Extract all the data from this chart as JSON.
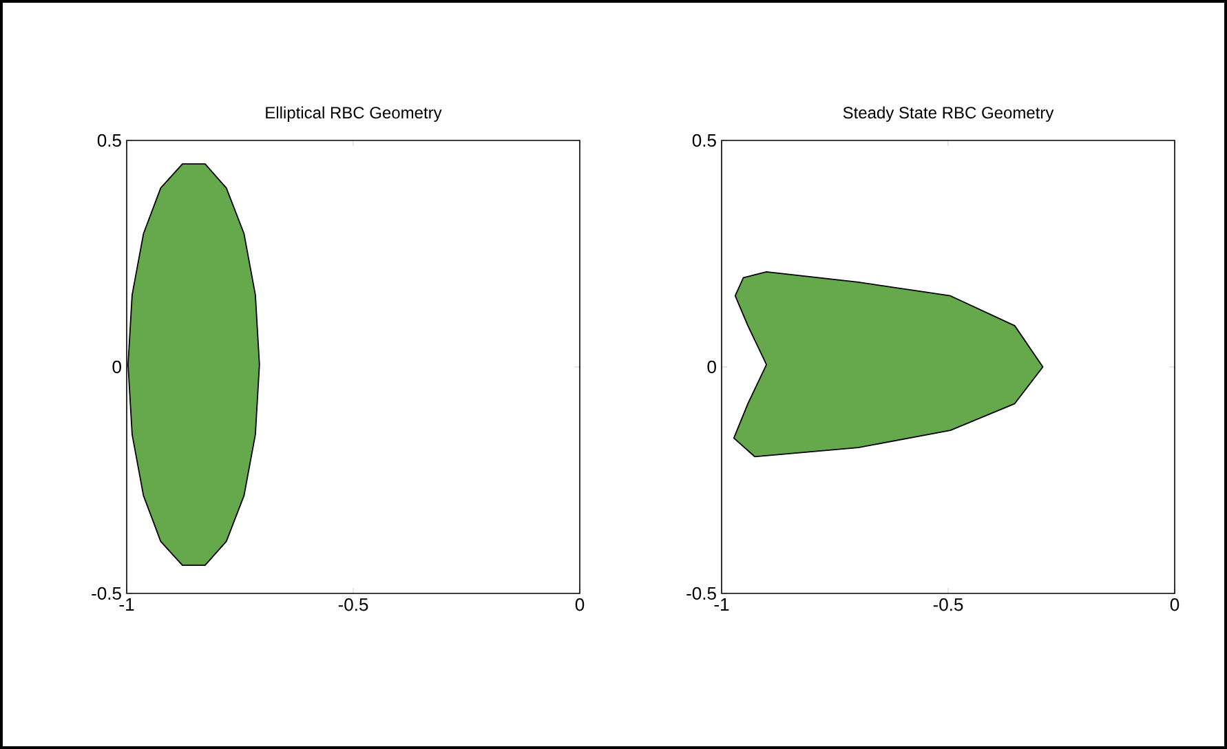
{
  "chart_data": [
    {
      "type": "area",
      "title": "Elliptical RBC Geometry",
      "xlim": [
        -1,
        0
      ],
      "ylim": [
        -0.5,
        0.5
      ],
      "xticks": [
        -1,
        -0.5,
        0
      ],
      "yticks": [
        -0.5,
        0,
        0.5
      ],
      "grid": false,
      "series": [
        {
          "color": "#66a84c",
          "x": [
            -0.707,
            -0.716,
            -0.741,
            -0.78,
            -0.827,
            -0.877,
            -0.925,
            -0.963,
            -0.988,
            -0.997,
            -0.988,
            -0.963,
            -0.925,
            -0.877,
            -0.827,
            -0.78,
            -0.741,
            -0.716
          ],
          "values": [
            0.005,
            0.159,
            0.294,
            0.395,
            0.448,
            0.448,
            0.395,
            0.294,
            0.159,
            0.005,
            -0.149,
            -0.284,
            -0.385,
            -0.438,
            -0.438,
            -0.385,
            -0.284,
            -0.149
          ]
        }
      ]
    },
    {
      "type": "area",
      "title": "Steady State RBC Geometry",
      "xlim": [
        -1,
        0
      ],
      "ylim": [
        -0.5,
        0.5
      ],
      "xticks": [
        -1,
        -0.5,
        0
      ],
      "yticks": [
        -0.5,
        0,
        0.5
      ],
      "grid": false,
      "series": [
        {
          "color": "#66a84c",
          "x": [
            -0.291,
            -0.353,
            -0.495,
            -0.698,
            -0.901,
            -0.952,
            -0.97,
            -0.942,
            -0.901,
            -0.942,
            -0.973,
            -0.927,
            -0.698,
            -0.495,
            -0.353
          ],
          "values": [
            0.0,
            0.091,
            0.157,
            0.187,
            0.21,
            0.197,
            0.157,
            0.091,
            0.005,
            -0.081,
            -0.157,
            -0.198,
            -0.178,
            -0.14,
            -0.081
          ]
        }
      ]
    }
  ]
}
